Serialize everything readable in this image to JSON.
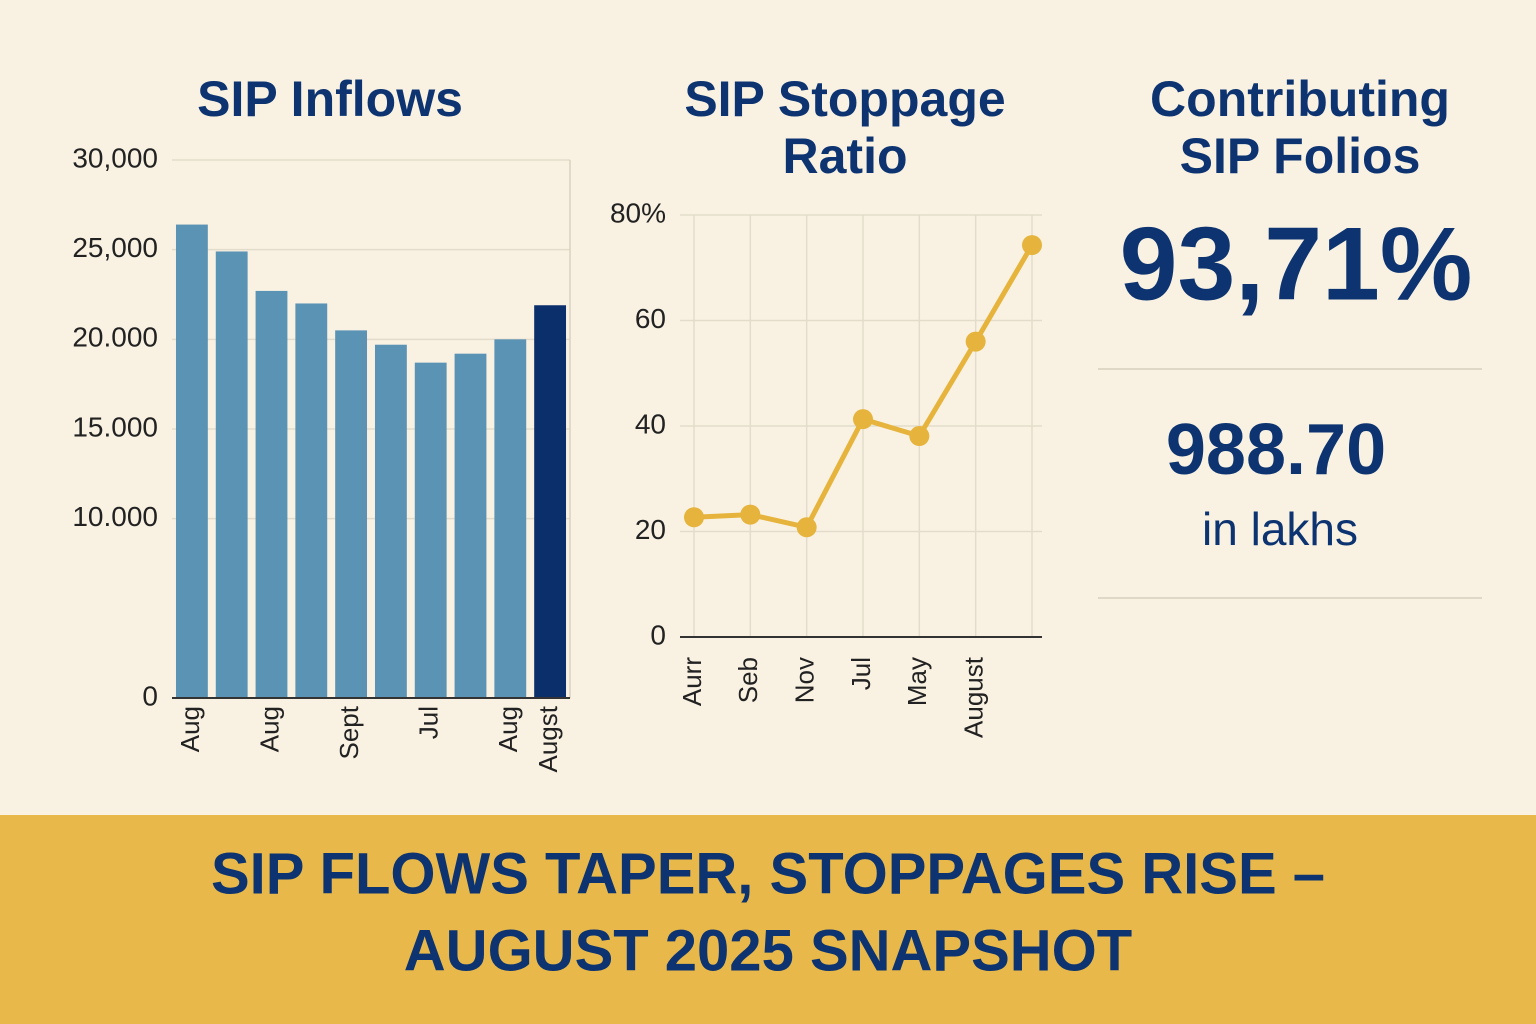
{
  "chart_data": [
    {
      "type": "bar",
      "title": [
        "SIP Inflows"
      ],
      "categories": [
        "Aug",
        null,
        "Aug",
        null,
        "Sept",
        null,
        "Jul",
        null,
        "Aug",
        "Augst"
      ],
      "values": [
        26400,
        24900,
        22700,
        22000,
        20500,
        19700,
        18700,
        19200,
        20000,
        21900
      ],
      "colors": [
        "#5b93b5",
        "#5b93b5",
        "#5b93b5",
        "#5b93b5",
        "#5b93b5",
        "#5b93b5",
        "#5b93b5",
        "#5b93b5",
        "#5b93b5",
        "#0b2f6b"
      ],
      "ylim": [
        0,
        30000
      ],
      "yticks": [
        0,
        {
          "value": 10000,
          "label": "10.000"
        },
        {
          "value": 15000,
          "label": "15.000"
        },
        {
          "value": 20000,
          "label": "20.000"
        },
        {
          "value": 25000,
          "label": "25,000"
        },
        {
          "value": 30000,
          "label": "30,000"
        }
      ],
      "grid": true
    },
    {
      "type": "line",
      "title": [
        "SIP Stoppage",
        "Ratio"
      ],
      "categories": [
        "Aurr",
        "Seb",
        "Nov",
        "Jul",
        "May",
        "August",
        null
      ],
      "values": [
        22.7,
        23.2,
        20.8,
        41.3,
        38.1,
        56,
        74.3
      ],
      "color": "#e6b43c",
      "ylim": [
        0,
        80
      ],
      "yticks": [
        0,
        20,
        40,
        60,
        {
          "value": 80,
          "label": "80%"
        }
      ],
      "grid": true
    }
  ],
  "panel": {
    "title": [
      "Contributing",
      "SIP Folios"
    ],
    "percent": "93,71%",
    "count": "988.70",
    "unit": "in lakhs"
  },
  "banner": [
    "SIP FLOWS TAPER, STOPPAGES RISE –",
    "AUGUST 2025 SNAPSHOT"
  ]
}
